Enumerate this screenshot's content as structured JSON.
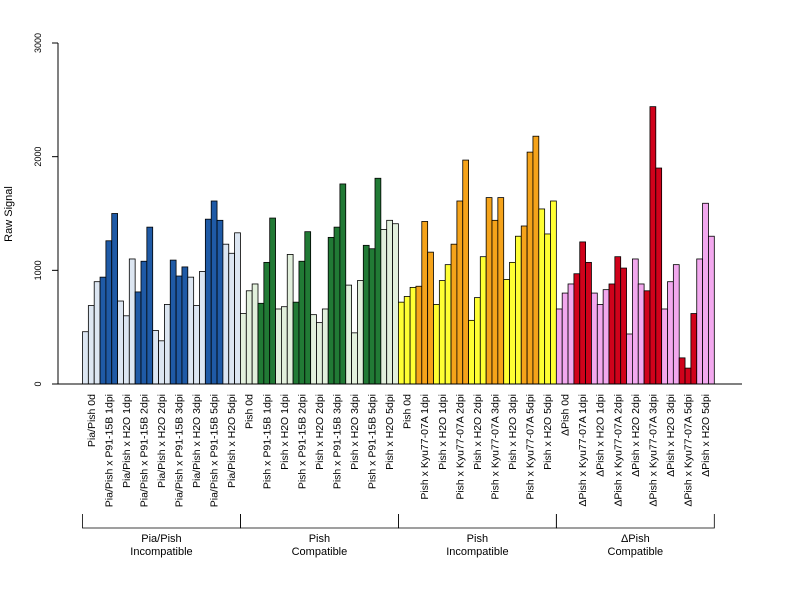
{
  "chart_data": {
    "type": "bar",
    "ylabel": "Raw Signal",
    "ylim": [
      0,
      3000
    ],
    "yticks": [
      0,
      1000,
      2000,
      3000
    ],
    "bars_per_condition": 3,
    "groups": [
      {
        "label": "Pia/Pish\nIncompatible",
        "conditions": [
          {
            "label": "Pia/Pish 0d",
            "color": "#dce6f2",
            "values": [
              460,
              690,
              900
            ]
          },
          {
            "label": "Pia/Pish x P91-15B 1dpi",
            "color": "#1f5aa6",
            "values": [
              940,
              1260,
              1500
            ]
          },
          {
            "label": "Pia/Pish x H2O 1dpi",
            "color": "#dce6f2",
            "values": [
              730,
              600,
              1100
            ]
          },
          {
            "label": "Pia/Pish x P91-15B 2dpi",
            "color": "#1f5aa6",
            "values": [
              810,
              1080,
              1380
            ]
          },
          {
            "label": "Pia/Pish x H2O 2dpi",
            "color": "#dce6f2",
            "values": [
              470,
              380,
              700
            ]
          },
          {
            "label": "Pia/Pish x P91-15B 3dpi",
            "color": "#1f5aa6",
            "values": [
              1090,
              950,
              1030
            ]
          },
          {
            "label": "Pia/Pish x H2O 3dpi",
            "color": "#dce6f2",
            "values": [
              940,
              690,
              990
            ]
          },
          {
            "label": "Pia/Pish x P91-15B 5dpi",
            "color": "#1f5aa6",
            "values": [
              1450,
              1610,
              1440
            ]
          },
          {
            "label": "Pia/Pish x H2O 5dpi",
            "color": "#dce6f2",
            "values": [
              1230,
              1150,
              1330
            ]
          }
        ]
      },
      {
        "label": "Pish\nCompatible",
        "conditions": [
          {
            "label": "Pish 0d",
            "color": "#e2f0dc",
            "values": [
              620,
              820,
              880
            ]
          },
          {
            "label": "Pish x P91-15B 1dpi",
            "color": "#217a35",
            "values": [
              710,
              1070,
              1460
            ]
          },
          {
            "label": "Pish x H2O 1dpi",
            "color": "#e2f0dc",
            "values": [
              660,
              680,
              1140
            ]
          },
          {
            "label": "Pish x P91-15B 2dpi",
            "color": "#217a35",
            "values": [
              720,
              1080,
              1340
            ]
          },
          {
            "label": "Pish x H2O 2dpi",
            "color": "#e2f0dc",
            "values": [
              610,
              540,
              660
            ]
          },
          {
            "label": "Pish x P91-15B 3dpi",
            "color": "#217a35",
            "values": [
              1290,
              1380,
              1760
            ]
          },
          {
            "label": "Pish x H2O 3dpi",
            "color": "#e2f0dc",
            "values": [
              870,
              450,
              910
            ]
          },
          {
            "label": "Pish x P91-15B 5dpi",
            "color": "#217a35",
            "values": [
              1220,
              1190,
              1810
            ]
          },
          {
            "label": "Pish x H2O 5dpi",
            "color": "#e2f0dc",
            "values": [
              1360,
              1440,
              1410
            ]
          }
        ]
      },
      {
        "label": "Pish\nIncompatible",
        "conditions": [
          {
            "label": "Pish 0d",
            "color": "#ffff33",
            "values": [
              720,
              770,
              850
            ]
          },
          {
            "label": "Pish x Kyu77-07A 1dpi",
            "color": "#f5a31a",
            "values": [
              860,
              1430,
              1160
            ]
          },
          {
            "label": "Pish x H2O 1dpi",
            "color": "#ffff33",
            "values": [
              700,
              910,
              1050
            ]
          },
          {
            "label": "Pish x Kyu77-07A 2dpi",
            "color": "#f5a31a",
            "values": [
              1230,
              1610,
              1970
            ]
          },
          {
            "label": "Pish x H2O 2dpi",
            "color": "#ffff33",
            "values": [
              560,
              760,
              1120
            ]
          },
          {
            "label": "Pish x Kyu77-07A 3dpi",
            "color": "#f5a31a",
            "values": [
              1640,
              1440,
              1640
            ]
          },
          {
            "label": "Pish x H2O 3dpi",
            "color": "#ffff33",
            "values": [
              920,
              1070,
              1300
            ]
          },
          {
            "label": "Pish x Kyu77-07A 5dpi",
            "color": "#f5a31a",
            "values": [
              1390,
              2040,
              2180
            ]
          },
          {
            "label": "Pish x H2O 5dpi",
            "color": "#ffff33",
            "values": [
              1540,
              1320,
              1610
            ]
          }
        ]
      },
      {
        "label": "ΔPish\nCompatible",
        "conditions": [
          {
            "label": "ΔPish 0d",
            "color": "#f2a8ee",
            "values": [
              660,
              800,
              880
            ]
          },
          {
            "label": "ΔPish x Kyu77-07A 1dpi",
            "color": "#d0021b",
            "values": [
              970,
              1250,
              1070
            ]
          },
          {
            "label": "ΔPish x H2O 1dpi",
            "color": "#f2a8ee",
            "values": [
              800,
              700,
              830
            ]
          },
          {
            "label": "ΔPish x Kyu77-07A 2dpi",
            "color": "#d0021b",
            "values": [
              880,
              1120,
              1020
            ]
          },
          {
            "label": "ΔPish x H2O 2dpi",
            "color": "#f2a8ee",
            "values": [
              440,
              1100,
              880
            ]
          },
          {
            "label": "ΔPish x Kyu77-07A 3dpi",
            "color": "#d0021b",
            "values": [
              820,
              2440,
              1900
            ]
          },
          {
            "label": "ΔPish x H2O 3dpi",
            "color": "#f2a8ee",
            "values": [
              660,
              900,
              1050
            ]
          },
          {
            "label": "ΔPish x Kyu77-07A 5dpi",
            "color": "#d0021b",
            "values": [
              230,
              140,
              620
            ]
          },
          {
            "label": "ΔPish x H2O 5dpi",
            "color": "#f2a8ee",
            "values": [
              1100,
              1590,
              1300
            ]
          }
        ]
      }
    ]
  }
}
